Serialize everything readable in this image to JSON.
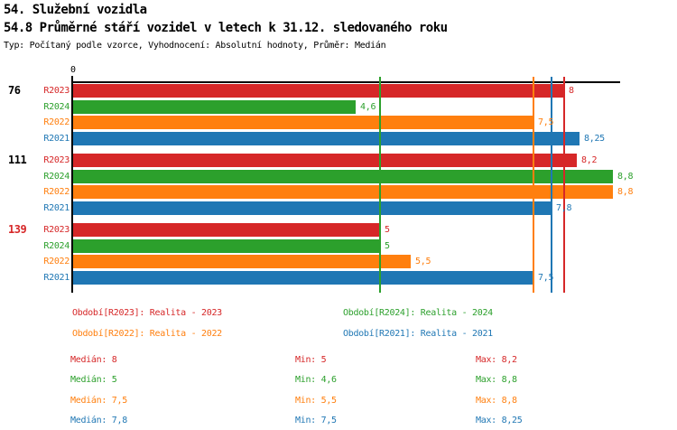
{
  "page": {
    "title1": "54. Služební vozidla",
    "title2": "54.8 Průměrné stáří vozidel v letech k 31.12. sledovaného roku",
    "subtitle": "Typ: Počítaný podle vzorce, Vyhodnocení: Absolutní hodnoty, Průměr: Medián"
  },
  "colors": {
    "R2023": "#d62728",
    "R2024": "#2ca02c",
    "R2022": "#ff7f0e",
    "R2021": "#1f77b4",
    "axis": "#000000",
    "group_label_default": "#000000",
    "group_label_highlight": "#d62728"
  },
  "chart_data": {
    "type": "bar",
    "orientation": "horizontal",
    "title": "54.8 Průměrné stáří vozidel v letech k 31.12. sledovaného roku",
    "x_axis": {
      "min": 0,
      "tick_labels": [
        "0"
      ],
      "origin_label": "0"
    },
    "series_order": [
      "R2023",
      "R2024",
      "R2022",
      "R2021"
    ],
    "groups": [
      {
        "label": "76",
        "label_color": "#000000",
        "bars": [
          {
            "series": "R2023",
            "value": 8,
            "display": "8"
          },
          {
            "series": "R2024",
            "value": 4.6,
            "display": "4,6"
          },
          {
            "series": "R2022",
            "value": 7.5,
            "display": "7,5"
          },
          {
            "series": "R2021",
            "value": 8.25,
            "display": "8,25"
          }
        ]
      },
      {
        "label": "111",
        "label_color": "#000000",
        "bars": [
          {
            "series": "R2023",
            "value": 8.2,
            "display": "8,2"
          },
          {
            "series": "R2024",
            "value": 8.8,
            "display": "8,8"
          },
          {
            "series": "R2022",
            "value": 8.8,
            "display": "8,8"
          },
          {
            "series": "R2021",
            "value": 7.8,
            "display": "7,8"
          }
        ]
      },
      {
        "label": "139",
        "label_color": "#d62728",
        "bars": [
          {
            "series": "R2023",
            "value": 5,
            "display": "5"
          },
          {
            "series": "R2024",
            "value": 5,
            "display": "5"
          },
          {
            "series": "R2022",
            "value": 5.5,
            "display": "5,5"
          },
          {
            "series": "R2021",
            "value": 7.5,
            "display": "7,5"
          }
        ]
      }
    ],
    "median_lines": [
      {
        "series": "R2023",
        "value": 8
      },
      {
        "series": "R2024",
        "value": 5
      },
      {
        "series": "R2022",
        "value": 7.5
      },
      {
        "series": "R2021",
        "value": 7.8
      }
    ],
    "legend": [
      {
        "series": "R2023",
        "label": "Období[R2023]: Realita - 2023"
      },
      {
        "series": "R2024",
        "label": "Období[R2024]: Realita - 2024"
      },
      {
        "series": "R2022",
        "label": "Období[R2022]: Realita - 2022"
      },
      {
        "series": "R2021",
        "label": "Období[R2021]: Realita - 2021"
      }
    ],
    "stat_labels": {
      "median": "Medián:",
      "min": "Min:",
      "max": "Max:"
    },
    "stats": [
      {
        "series": "R2023",
        "median": "8",
        "min": "5",
        "max": "8,2"
      },
      {
        "series": "R2024",
        "median": "5",
        "min": "4,6",
        "max": "8,8"
      },
      {
        "series": "R2022",
        "median": "7,5",
        "min": "5,5",
        "max": "8,8"
      },
      {
        "series": "R2021",
        "median": "7,8",
        "min": "7,5",
        "max": "8,25"
      }
    ]
  }
}
